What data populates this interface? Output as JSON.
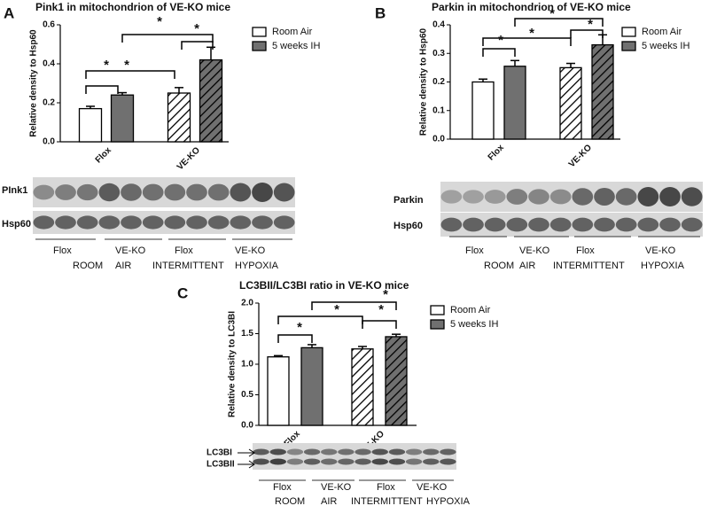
{
  "chart_data": [
    {
      "type": "bar",
      "panel": "A",
      "title": "Pink1 in mitochondrion of VE-KO mice",
      "y_label": "Relative density to Hsp60",
      "categories": [
        "Flox",
        "VE-KO"
      ],
      "hatched": [
        false,
        true
      ],
      "series": [
        {
          "name": "Room Air",
          "color": "#ffffff",
          "values": [
            0.17,
            0.25
          ],
          "errors": [
            0.012,
            0.028
          ]
        },
        {
          "name": "5 weeks IH",
          "color": "#707070",
          "values": [
            0.24,
            0.42
          ],
          "errors": [
            0.012,
            0.065
          ]
        }
      ],
      "ylim": [
        0,
        0.6
      ],
      "yticks": [
        {
          "value": 0,
          "label": "0.0"
        },
        0.2,
        0.4,
        0.6
      ],
      "grid": false,
      "annotations": [
        "*",
        "*",
        "*",
        "*"
      ]
    },
    {
      "type": "bar",
      "panel": "B",
      "title": "Parkin in mitochondrion of VE-KO mice",
      "y_label": "Relative density to Hsp60",
      "categories": [
        "Flox",
        "VE-KO"
      ],
      "hatched": [
        false,
        true
      ],
      "series": [
        {
          "name": "Room Air",
          "color": "#ffffff",
          "values": [
            0.2,
            0.25
          ],
          "errors": [
            0.01,
            0.015
          ]
        },
        {
          "name": "5 weeks IH",
          "color": "#707070",
          "values": [
            0.255,
            0.33
          ],
          "errors": [
            0.02,
            0.035
          ]
        }
      ],
      "ylim": [
        0,
        0.4
      ],
      "yticks": [
        {
          "value": 0,
          "label": "0.0"
        },
        0.1,
        0.2,
        0.3,
        0.4
      ],
      "grid": false,
      "annotations": [
        "*",
        "*",
        "*",
        "*"
      ]
    },
    {
      "type": "bar",
      "panel": "C",
      "title": "LC3BII/LC3BI ratio in VE-KO mice",
      "y_label": "Relative density to LC3BI",
      "categories": [
        "Flox",
        "VE-KO"
      ],
      "hatched": [
        false,
        true
      ],
      "series": [
        {
          "name": "Room Air",
          "color": "#ffffff",
          "values": [
            1.12,
            1.25
          ],
          "errors": [
            0.02,
            0.04
          ]
        },
        {
          "name": "5 weeks IH",
          "color": "#707070",
          "values": [
            1.27,
            1.45
          ],
          "errors": [
            0.05,
            0.04
          ]
        }
      ],
      "ylim": [
        0,
        2.0
      ],
      "yticks": [
        {
          "value": 0,
          "label": "0.0"
        },
        0.5,
        {
          "value": 1.0,
          "label": "1.0"
        },
        1.5,
        {
          "value": 2.0,
          "label": "2.0"
        }
      ],
      "grid": false,
      "annotations": [
        "*",
        "*",
        "*",
        "*"
      ]
    }
  ],
  "blots": [
    {
      "rows": [
        "PInk1",
        "Hsp60"
      ],
      "groups": [
        "Flox",
        "VE-KO",
        "Flox",
        "VE-KO"
      ],
      "conditions": [
        "ROOM",
        "AIR",
        "INTERMITTENT",
        "HYPOXIA"
      ]
    },
    {
      "rows": [
        "Parkin",
        "Hsp60"
      ],
      "groups": [
        "Flox",
        "VE-KO",
        "Flox",
        "VE-KO"
      ],
      "conditions": [
        "ROOM",
        "AIR",
        "INTERMITTENT",
        "HYPOXIA"
      ]
    },
    {
      "rows": [
        "LC3BI",
        "LC3BII"
      ],
      "groups": [
        "Flox",
        "VE-KO",
        "Flox",
        "VE-KO"
      ],
      "conditions": [
        "ROOM",
        "AIR",
        "INTERMITTENT",
        "HYPOXIA"
      ]
    }
  ]
}
